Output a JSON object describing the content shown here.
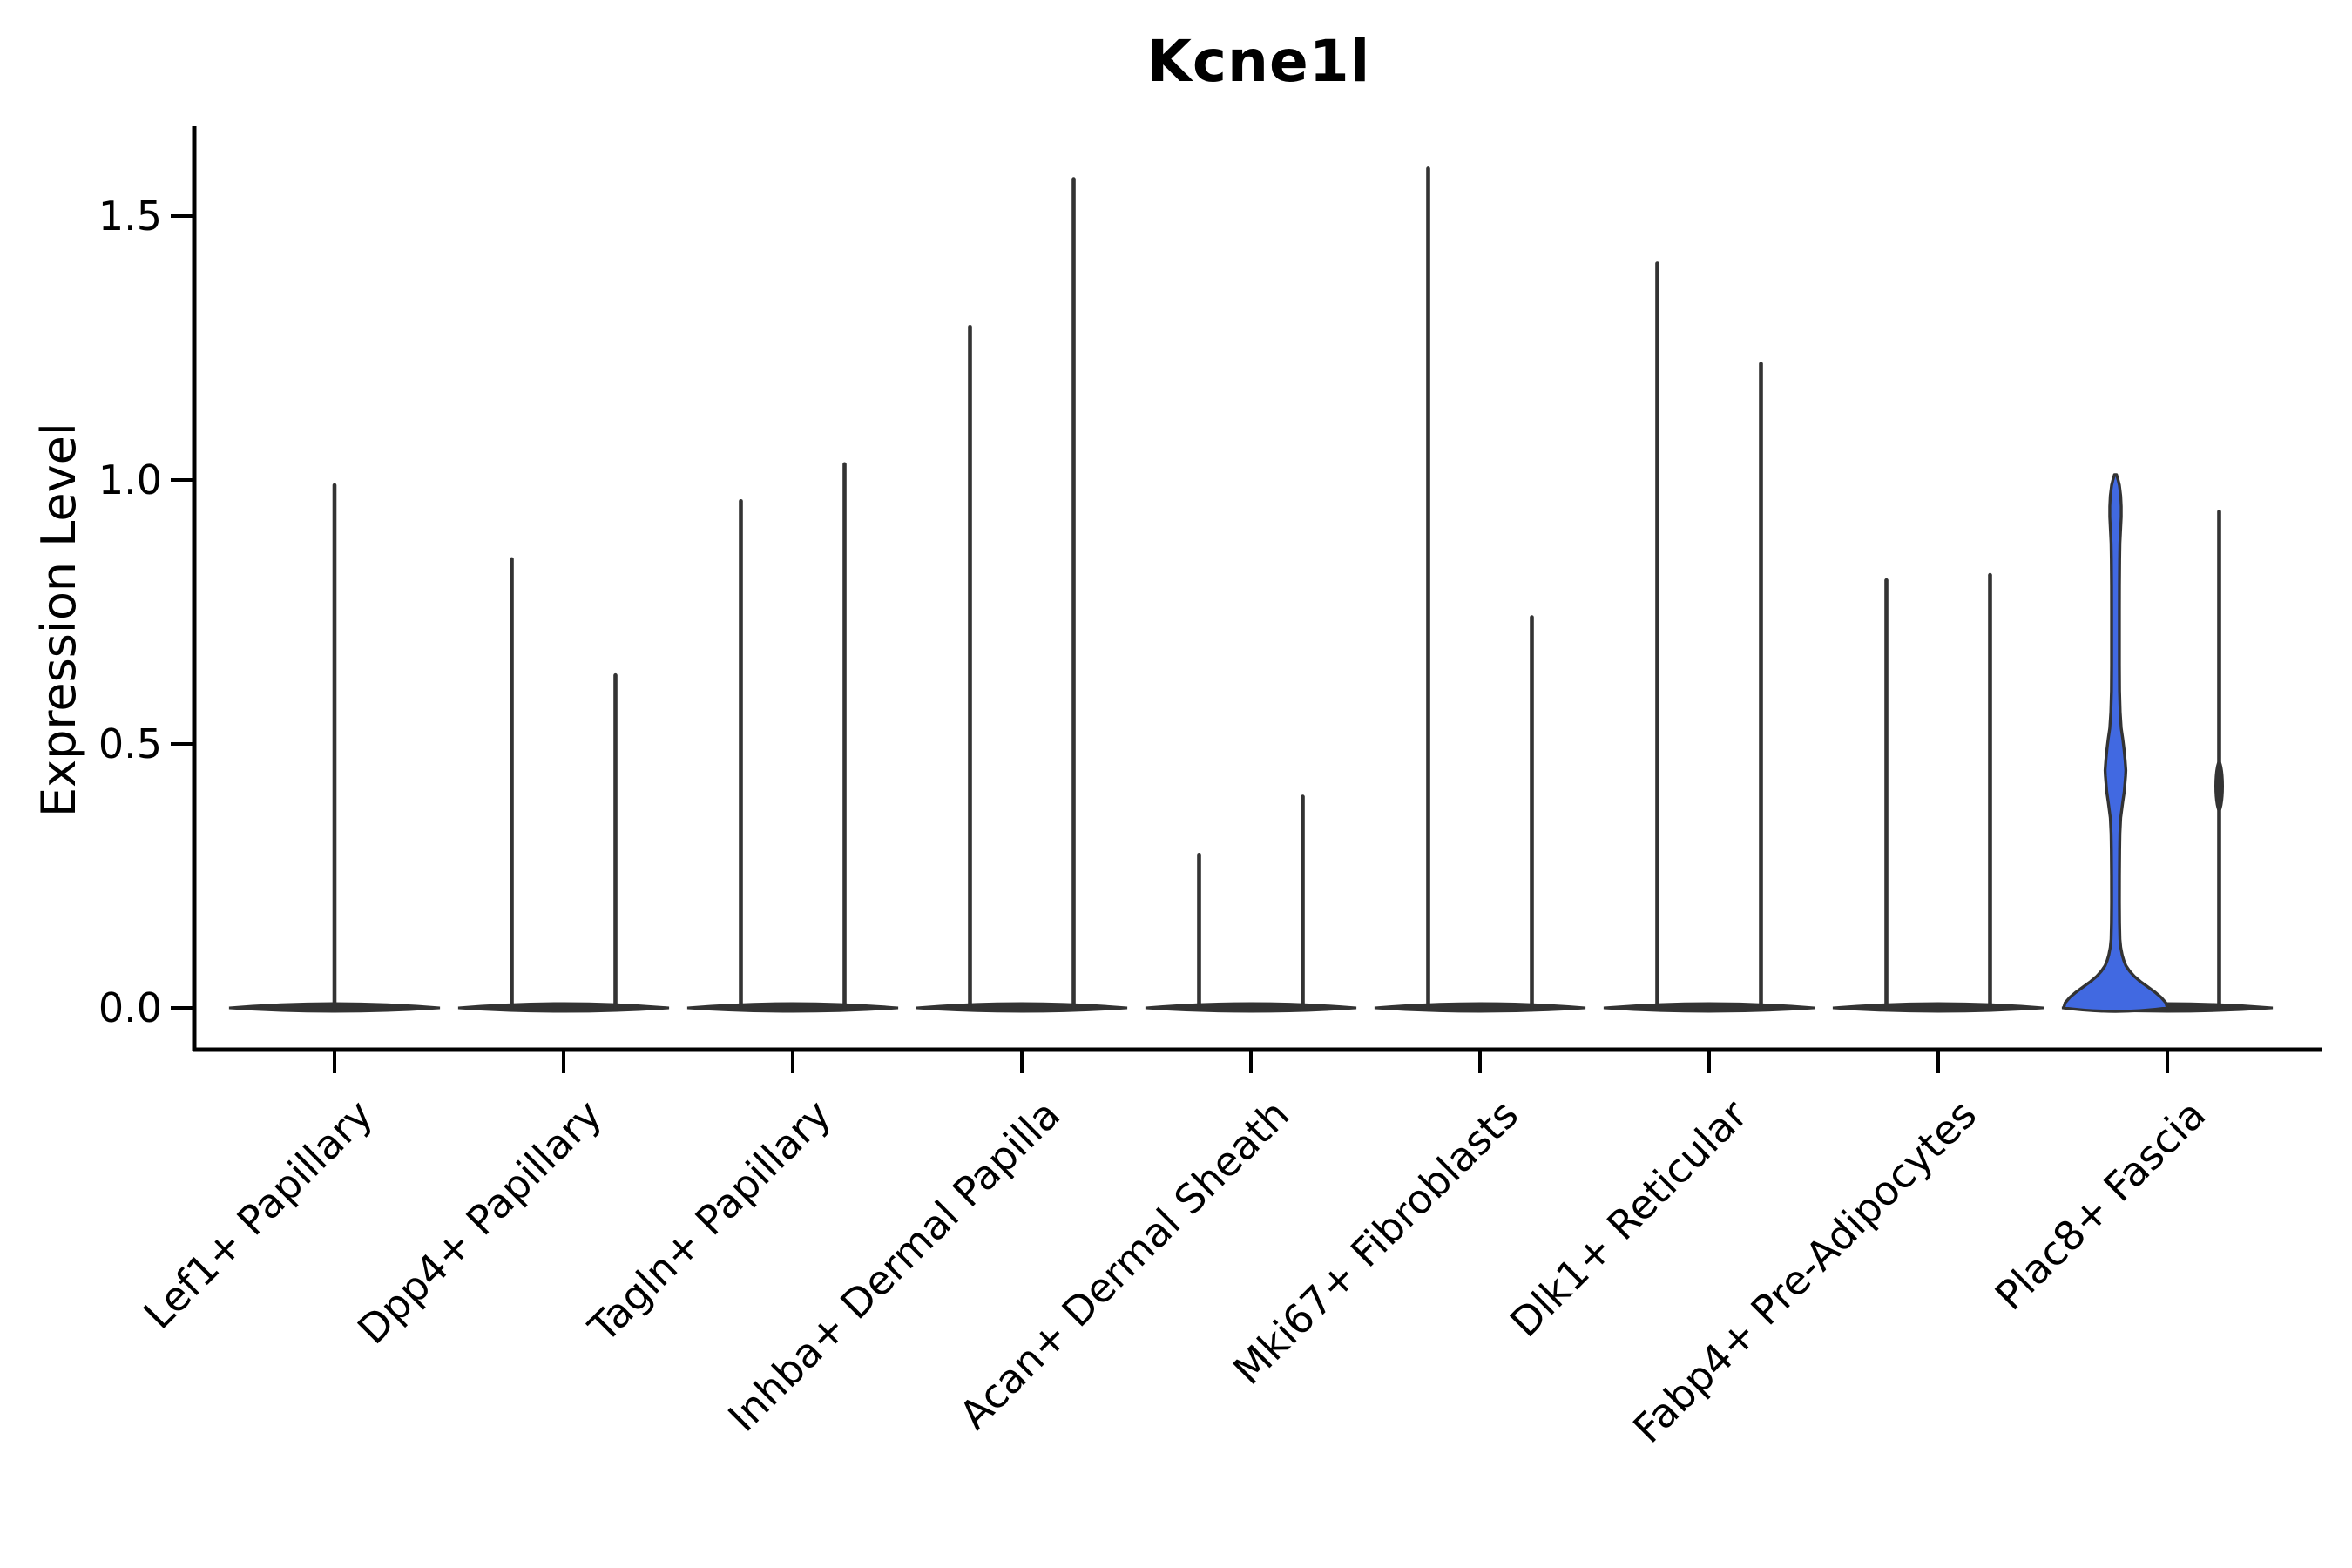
{
  "chart_data": {
    "type": "violin",
    "title": "Kcne1l",
    "ylabel": "Expression Level",
    "xlabel": "",
    "ylim": [
      0,
      1.67
    ],
    "ytick_labels": [
      "0.0",
      "0.5",
      "1.0",
      "1.5"
    ],
    "ytick_values": [
      0.0,
      0.5,
      1.0,
      1.5
    ],
    "grid": false,
    "legend": "none",
    "categories": [
      "Lef1+ Papillary",
      "Dpp4+ Papillary",
      "Tagln+ Papillary",
      "Inhba+ Dermal Papilla",
      "Acan+ Dermal Sheath",
      "Mki67+ Fibroblasts",
      "Dlk1+ Reticular",
      "Fabp4+ Pre-Adipocytes",
      "Plac8+ Fascia"
    ],
    "violins": [
      {
        "category": "Lef1+ Papillary",
        "parts": [
          {
            "pos": "center",
            "max": 0.99
          }
        ]
      },
      {
        "category": "Dpp4+ Papillary",
        "parts": [
          {
            "pos": "left",
            "max": 0.85
          },
          {
            "pos": "right",
            "max": 0.63
          }
        ]
      },
      {
        "category": "Tagln+ Papillary",
        "parts": [
          {
            "pos": "left",
            "max": 0.96
          },
          {
            "pos": "right",
            "max": 1.03
          }
        ]
      },
      {
        "category": "Inhba+ Dermal Papilla",
        "parts": [
          {
            "pos": "left",
            "max": 1.29
          },
          {
            "pos": "right",
            "max": 1.57
          }
        ]
      },
      {
        "category": "Acan+ Dermal Sheath",
        "parts": [
          {
            "pos": "left",
            "max": 0.29
          },
          {
            "pos": "right",
            "max": 0.4
          }
        ]
      },
      {
        "category": "Mki67+ Fibroblasts",
        "parts": [
          {
            "pos": "left",
            "max": 1.59
          },
          {
            "pos": "right",
            "max": 0.74
          }
        ]
      },
      {
        "category": "Dlk1+ Reticular",
        "parts": [
          {
            "pos": "left",
            "max": 1.41
          },
          {
            "pos": "right",
            "max": 1.22
          }
        ]
      },
      {
        "category": "Fabp4+ Pre-Adipocytes",
        "parts": [
          {
            "pos": "left",
            "max": 0.81
          },
          {
            "pos": "right",
            "max": 0.82
          }
        ]
      },
      {
        "category": "Plac8+ Fascia",
        "parts": [
          {
            "pos": "left",
            "max": 1.01,
            "fill": "#4169E1",
            "profile": [
              [
                0.0,
                1.0
              ],
              [
                0.01,
                0.97
              ],
              [
                0.02,
                0.88
              ],
              [
                0.03,
                0.76
              ],
              [
                0.04,
                0.62
              ],
              [
                0.05,
                0.48
              ],
              [
                0.06,
                0.36
              ],
              [
                0.07,
                0.27
              ],
              [
                0.08,
                0.2
              ],
              [
                0.09,
                0.16
              ],
              [
                0.1,
                0.13
              ],
              [
                0.115,
                0.1
              ],
              [
                0.13,
                0.085
              ],
              [
                0.16,
                0.078
              ],
              [
                0.2,
                0.075
              ],
              [
                0.25,
                0.076
              ],
              [
                0.3,
                0.08
              ],
              [
                0.33,
                0.085
              ],
              [
                0.36,
                0.1
              ],
              [
                0.39,
                0.14
              ],
              [
                0.41,
                0.17
              ],
              [
                0.44,
                0.195
              ],
              [
                0.45,
                0.2
              ],
              [
                0.47,
                0.185
              ],
              [
                0.49,
                0.165
              ],
              [
                0.51,
                0.14
              ],
              [
                0.53,
                0.11
              ],
              [
                0.56,
                0.09
              ],
              [
                0.6,
                0.078
              ],
              [
                0.65,
                0.075
              ],
              [
                0.7,
                0.075
              ],
              [
                0.75,
                0.075
              ],
              [
                0.8,
                0.076
              ],
              [
                0.85,
                0.08
              ],
              [
                0.88,
                0.085
              ],
              [
                0.91,
                0.1
              ],
              [
                0.93,
                0.11
              ],
              [
                0.95,
                0.11
              ],
              [
                0.97,
                0.1
              ],
              [
                0.99,
                0.075
              ],
              [
                1.0,
                0.05
              ],
              [
                1.01,
                0.02
              ]
            ]
          },
          {
            "pos": "right",
            "max": 0.94,
            "bulges": [
              {
                "at": 0.42,
                "rx": 5.5,
                "ry": 30
              }
            ]
          }
        ]
      }
    ],
    "colors": {
      "violin": "#333333",
      "highlight_fill": "#4169E1",
      "axis": "#000000",
      "background": "#ffffff"
    }
  }
}
